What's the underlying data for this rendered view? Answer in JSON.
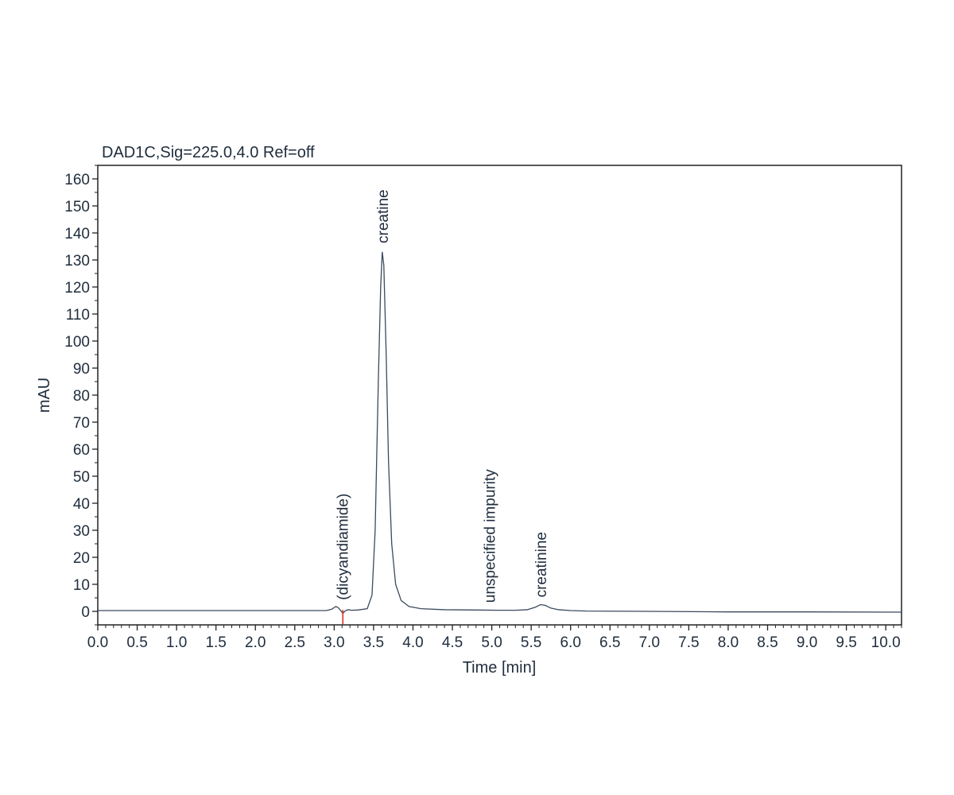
{
  "chart_data": {
    "type": "line",
    "title": "DAD1C,Sig=225.0,4.0  Ref=off",
    "xlabel": "Time [min]",
    "ylabel": "mAU",
    "xlim": [
      0.0,
      10.2
    ],
    "ylim": [
      -5,
      165
    ],
    "x_ticks": [
      "0.0",
      "0.5",
      "1.0",
      "1.5",
      "2.0",
      "2.5",
      "3.0",
      "3.5",
      "4.0",
      "4.5",
      "5.0",
      "5.5",
      "6.0",
      "6.5",
      "7.0",
      "7.5",
      "8.0",
      "8.5",
      "9.0",
      "9.5",
      "10.0"
    ],
    "y_ticks": [
      "0",
      "10",
      "20",
      "30",
      "40",
      "50",
      "60",
      "70",
      "80",
      "90",
      "100",
      "110",
      "120",
      "130",
      "140",
      "150",
      "160"
    ],
    "grid": false,
    "series": [
      {
        "points": [
          [
            0.0,
            0.3
          ],
          [
            2.9,
            0.3
          ],
          [
            2.97,
            0.8
          ],
          [
            3.02,
            1.8
          ],
          [
            3.05,
            1.4
          ],
          [
            3.08,
            0.4
          ],
          [
            3.11,
            -0.8
          ],
          [
            3.14,
            0.2
          ],
          [
            3.18,
            0.6
          ],
          [
            3.22,
            0.4
          ],
          [
            3.3,
            0.5
          ],
          [
            3.42,
            1.0
          ],
          [
            3.48,
            6.0
          ],
          [
            3.52,
            30.0
          ],
          [
            3.56,
            85.0
          ],
          [
            3.59,
            120.0
          ],
          [
            3.61,
            133.0
          ],
          [
            3.63,
            128.0
          ],
          [
            3.66,
            95.0
          ],
          [
            3.69,
            55.0
          ],
          [
            3.73,
            25.0
          ],
          [
            3.78,
            10.0
          ],
          [
            3.85,
            4.0
          ],
          [
            3.95,
            1.8
          ],
          [
            4.1,
            1.0
          ],
          [
            4.4,
            0.6
          ],
          [
            4.8,
            0.5
          ],
          [
            5.1,
            0.4
          ],
          [
            5.3,
            0.4
          ],
          [
            5.45,
            0.6
          ],
          [
            5.55,
            1.5
          ],
          [
            5.62,
            2.5
          ],
          [
            5.68,
            2.2
          ],
          [
            5.75,
            1.2
          ],
          [
            5.85,
            0.6
          ],
          [
            6.0,
            0.3
          ],
          [
            6.2,
            0.1
          ],
          [
            7.0,
            0.0
          ],
          [
            8.0,
            -0.2
          ],
          [
            9.0,
            -0.2
          ],
          [
            10.2,
            -0.3
          ]
        ]
      }
    ],
    "annotations": [
      {
        "text": "(dicyandiamide)",
        "x": 3.1,
        "y": 3
      },
      {
        "text": "creatine",
        "x": 3.61,
        "y": 135
      },
      {
        "text": "unspecified impurity",
        "x": 4.97,
        "y": 2
      },
      {
        "text": "creatinine",
        "x": 5.62,
        "y": 4
      }
    ],
    "markers": [
      {
        "x": 3.11,
        "y": -1.8
      }
    ],
    "colors": {
      "trace": "#3a4a5c",
      "axis": "#222222",
      "text": "#1f2d3d",
      "marker": "#e0302a"
    }
  }
}
